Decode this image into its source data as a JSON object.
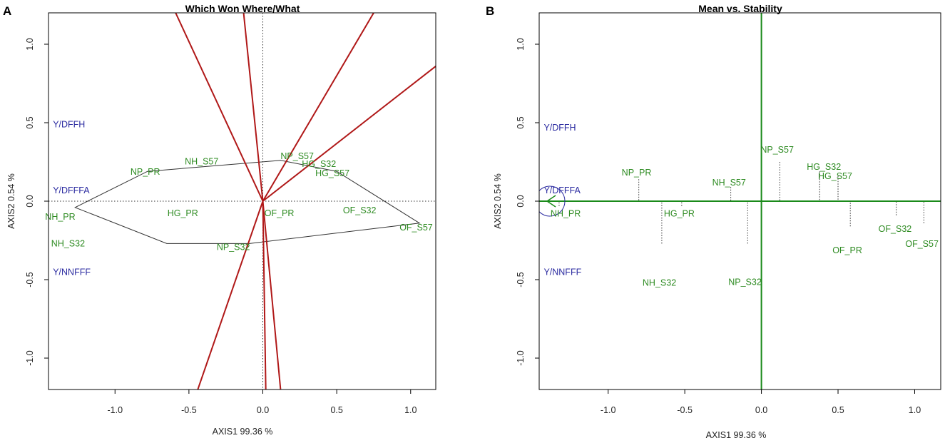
{
  "colors": {
    "genotype": "#2e8b22",
    "environment": "#2a2aa0",
    "sector_line": "#b01818",
    "hull": "#333333",
    "aec": "#1a8a1a",
    "frame": "#000000"
  },
  "chart_data": [
    {
      "type": "scatter",
      "panel": "A",
      "title": "Which Won Where/What",
      "xlabel": "AXIS1 99.36 %",
      "ylabel": "AXIS2 0.54 %",
      "xlim": [
        -1.45,
        1.17
      ],
      "ylim": [
        -1.2,
        1.2
      ],
      "xticks": [
        -1.0,
        -0.5,
        0.0,
        0.5,
        1.0
      ],
      "xtick_labels": [
        "-1.0",
        "-0.5",
        "0.0",
        "0.5",
        "1.0"
      ],
      "yticks": [
        -1.0,
        -0.5,
        0.0,
        0.5,
        1.0
      ],
      "ytick_labels": [
        "-1.0",
        "-0.5",
        "0.0",
        "0.5",
        "1.0"
      ],
      "genotypes": [
        {
          "name": "NP_PR",
          "x": -0.78,
          "y": 0.19
        },
        {
          "name": "NH_S57",
          "x": -0.2,
          "y": 0.13
        },
        {
          "name": "NP_S57",
          "x": 0.12,
          "y": 0.26
        },
        {
          "name": "HG_S32",
          "x": 0.38,
          "y": 0.21
        },
        {
          "name": "HG_S57",
          "x": 0.5,
          "y": 0.19
        },
        {
          "name": "OF_S32",
          "x": 0.88,
          "y": -0.09
        },
        {
          "name": "OF_S57",
          "x": 1.06,
          "y": -0.14
        },
        {
          "name": "OF_PR",
          "x": 0.58,
          "y": -0.15
        },
        {
          "name": "HG_PR",
          "x": -0.52,
          "y": -0.06
        },
        {
          "name": "NP_S32",
          "x": -0.09,
          "y": -0.27
        },
        {
          "name": "NH_S32",
          "x": -0.65,
          "y": -0.27
        },
        {
          "name": "NH_PR",
          "x": -1.27,
          "y": -0.04
        }
      ],
      "environments": [
        {
          "name": "Y/DFFH",
          "x": -1.42,
          "y": 0.47
        },
        {
          "name": "Y/DFFFA",
          "x": -1.42,
          "y": 0.05
        },
        {
          "name": "Y/NNFFF",
          "x": -1.42,
          "y": -0.47
        }
      ],
      "hull": [
        "NH_PR",
        "NP_PR",
        "NP_S57",
        "HG_S57",
        "OF_S57",
        "NP_S32",
        "NH_S32"
      ],
      "sector_lines": [
        {
          "x2": 0.75,
          "y2": 1.2
        },
        {
          "x2": 1.17,
          "y2": 0.86
        },
        {
          "x2": 0.12,
          "y2": -1.2
        },
        {
          "x2": 0.02,
          "y2": -1.2
        },
        {
          "x2": -0.44,
          "y2": -1.2
        },
        {
          "x2": -0.59,
          "y2": 1.2
        },
        {
          "x2": -0.13,
          "y2": 1.2
        }
      ]
    },
    {
      "type": "scatter",
      "panel": "B",
      "title": "Mean vs. Stability",
      "xlabel": "AXIS1 99.36 %",
      "ylabel": "AXIS2 0.54 %",
      "xlim": [
        -1.45,
        1.17
      ],
      "ylim": [
        -1.2,
        1.2
      ],
      "xticks": [
        -1.0,
        -0.5,
        0.0,
        0.5,
        1.0
      ],
      "xtick_labels": [
        "-1.0",
        "-0.5",
        "0.0",
        "0.5",
        "1.0"
      ],
      "yticks": [
        -1.0,
        -0.5,
        0.0,
        0.5,
        1.0
      ],
      "ytick_labels": [
        "-1.0",
        "-0.5",
        "0.0",
        "0.5",
        "1.0"
      ],
      "genotypes": [
        {
          "name": "NP_PR",
          "x": -0.8,
          "y": 0.14
        },
        {
          "name": "NH_S57",
          "x": -0.2,
          "y": 0.09
        },
        {
          "name": "NP_S57",
          "x": 0.12,
          "y": 0.25
        },
        {
          "name": "HG_S32",
          "x": 0.38,
          "y": 0.19
        },
        {
          "name": "HG_S57",
          "x": 0.5,
          "y": 0.16
        },
        {
          "name": "NH_PR",
          "x": -1.32,
          "y": -0.03
        },
        {
          "name": "HG_PR",
          "x": -0.52,
          "y": -0.03
        },
        {
          "name": "NH_S32",
          "x": -0.65,
          "y": -0.27
        },
        {
          "name": "NP_S32",
          "x": -0.09,
          "y": -0.27
        },
        {
          "name": "OF_PR",
          "x": 0.58,
          "y": -0.16
        },
        {
          "name": "OF_S32",
          "x": 0.88,
          "y": -0.09
        },
        {
          "name": "OF_S57",
          "x": 1.06,
          "y": -0.14
        }
      ],
      "environments": [
        {
          "name": "Y/DFFH",
          "x": -1.42,
          "y": 0.45
        },
        {
          "name": "Y/DFFFA",
          "x": -1.42,
          "y": 0.05
        },
        {
          "name": "Y/NNFFF",
          "x": -1.42,
          "y": -0.47
        }
      ],
      "aec_circle": {
        "x": -1.38,
        "y": 0.0
      }
    }
  ]
}
